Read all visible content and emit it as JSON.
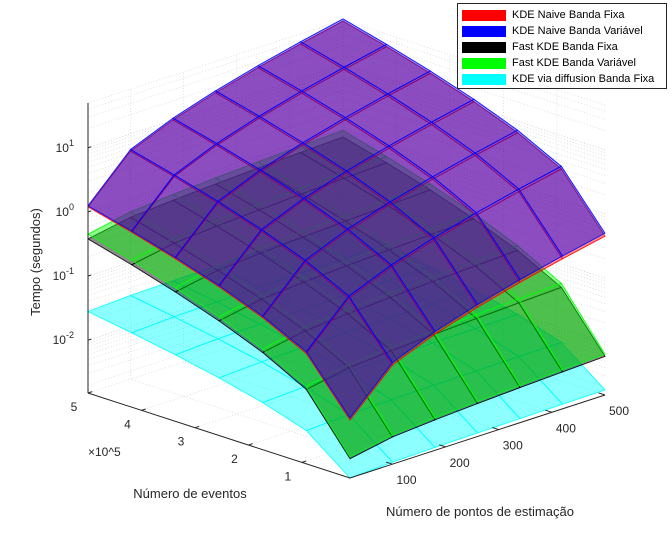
{
  "chart_data": {
    "type": "surface",
    "title": "",
    "xlabel": "Número de pontos de estimação",
    "ylabel": "Número de eventos",
    "zlabel": "Tempo (segundos)",
    "y_multiplier": "×10^5",
    "x_ticks": [
      100,
      200,
      300,
      400,
      500
    ],
    "y_ticks": [
      1,
      2,
      3,
      4,
      5
    ],
    "z_scale": "log",
    "z_ticks": [
      {
        "base": "10",
        "exp": "-2",
        "value": 0.01
      },
      {
        "base": "10",
        "exp": "-1",
        "value": 0.1
      },
      {
        "base": "10",
        "exp": "0",
        "value": 1
      },
      {
        "base": "10",
        "exp": "1",
        "value": 10
      }
    ],
    "xlim": [
      20,
      500
    ],
    "ylim": [
      0.1,
      5
    ],
    "zlim": [
      0.0015,
      50
    ],
    "grid": true,
    "legend_position": "top-right",
    "series": [
      {
        "name": "KDE Naive Banda Fixa",
        "color": "#ff0000",
        "corners": [
          0.012,
          0.45,
          1.2,
          48
        ]
      },
      {
        "name": "KDE Naive Banda Variável",
        "color": "#0000ff",
        "corners": [
          0.013,
          0.5,
          1.25,
          52
        ]
      },
      {
        "name": "Fast KDE Banda Fixa",
        "color": "#000000",
        "corners": [
          0.003,
          0.006,
          0.38,
          0.75
        ]
      },
      {
        "name": "Fast KDE Banda Variável",
        "color": "#00ff00",
        "corners": [
          0.0032,
          0.0065,
          0.45,
          0.95
        ]
      },
      {
        "name": "KDE via diffusion Banda Fixa",
        "color": "#00ffff",
        "corners": [
          0.0015,
          0.0018,
          0.028,
          0.034
        ]
      }
    ]
  }
}
